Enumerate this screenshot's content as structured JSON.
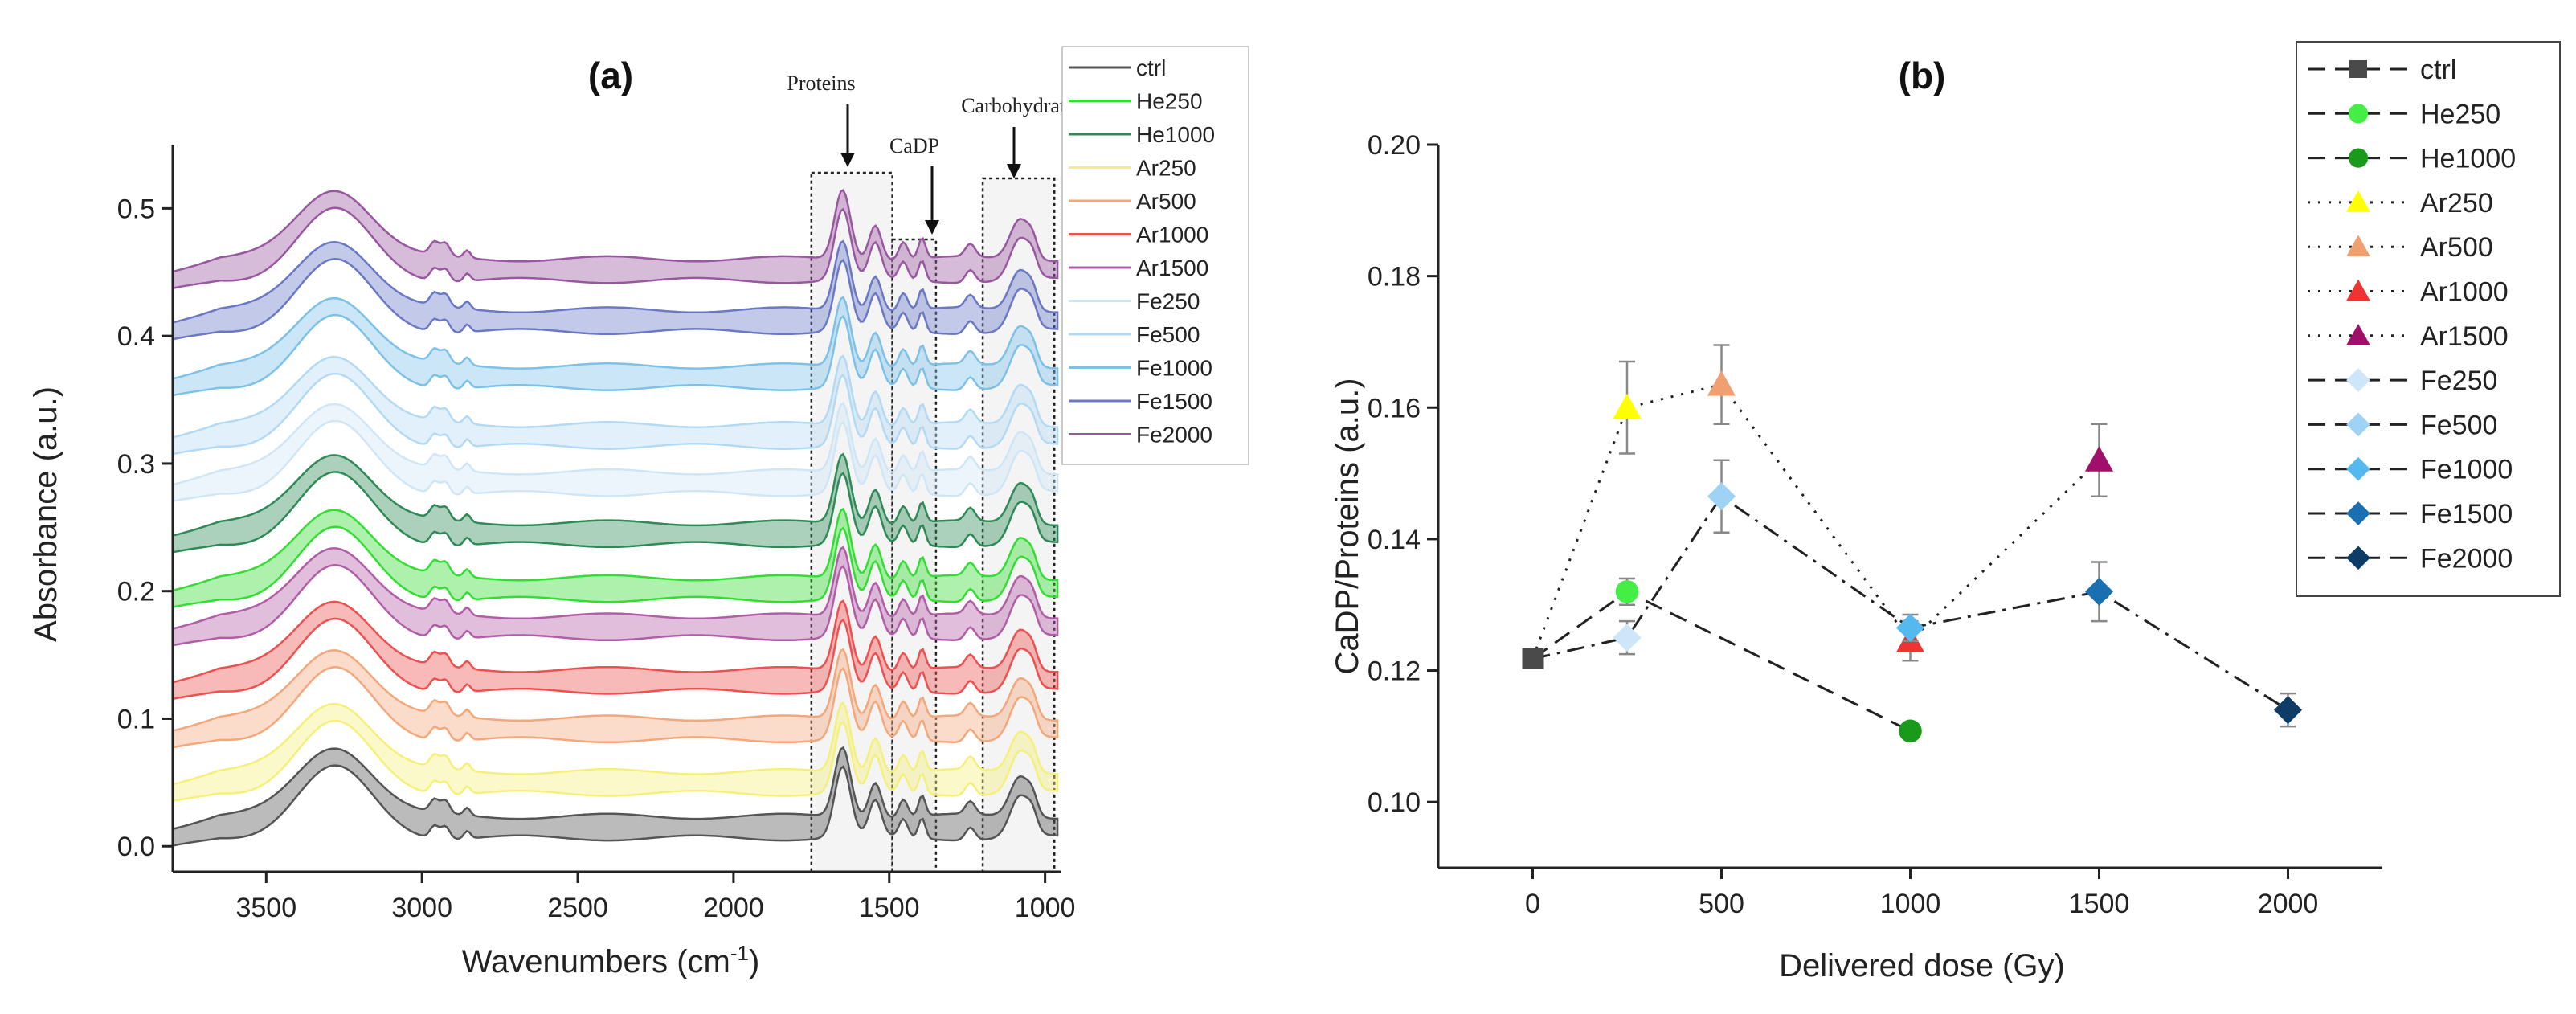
{
  "chart_data": [
    {
      "panel": "(a)",
      "type": "line",
      "title": "(a)",
      "xlabel": "Wavenumbers (cm",
      "xlabel_sup": "-1",
      "xlabel_end": ")",
      "ylabel": "Absorbance (a.u.)",
      "xlim": [
        3800,
        950
      ],
      "ylim": [
        -0.02,
        0.55
      ],
      "xticks": [
        3500,
        3000,
        2500,
        2000,
        1500,
        1000
      ],
      "yticks": [
        0.0,
        0.1,
        0.2,
        0.3,
        0.4,
        0.5
      ],
      "ytick_labels": [
        "0.0",
        "0.1",
        "0.2",
        "0.3",
        "0.4",
        "0.5"
      ],
      "legend_position": "top-right",
      "annotations": [
        {
          "label": "Proteins",
          "region": [
            1750,
            1490
          ]
        },
        {
          "label": "CaDP",
          "region": [
            1490,
            1350
          ]
        },
        {
          "label": "Carbohydrates",
          "region": [
            1200,
            970
          ]
        }
      ],
      "series": [
        {
          "name": "ctrl",
          "color": "#555555",
          "offset": 0.015
        },
        {
          "name": "He250",
          "color": "#33dd33",
          "offset": 0.202
        },
        {
          "name": "He1000",
          "color": "#2e8b57",
          "offset": 0.245
        },
        {
          "name": "Ar250",
          "color": "#f5f07a",
          "offset": 0.05
        },
        {
          "name": "Ar500",
          "color": "#f4a77a",
          "offset": 0.092
        },
        {
          "name": "Ar1000",
          "color": "#ee5050",
          "offset": 0.13
        },
        {
          "name": "Ar1500",
          "color": "#b25da8",
          "offset": 0.172
        },
        {
          "name": "Fe250",
          "color": "#cfe6f7",
          "offset": 0.285
        },
        {
          "name": "Fe500",
          "color": "#b3daf5",
          "offset": 0.322
        },
        {
          "name": "Fe1000",
          "color": "#7cc1e8",
          "offset": 0.368
        },
        {
          "name": "Fe1500",
          "color": "#6a78c5",
          "offset": 0.412
        },
        {
          "name": "Fe2000",
          "color": "#9a57a1",
          "offset": 0.452
        }
      ]
    },
    {
      "panel": "(b)",
      "type": "scatter",
      "title": "(b)",
      "xlabel": "Delivered dose (Gy)",
      "ylabel": "CaDP/Proteins (a.u.)",
      "xlim": [
        -250,
        2250
      ],
      "ylim": [
        0.09,
        0.2
      ],
      "xticks": [
        0,
        500,
        1000,
        1500,
        2000
      ],
      "yticks": [
        0.1,
        0.12,
        0.14,
        0.16,
        0.18,
        0.2
      ],
      "ytick_labels": [
        "0.10",
        "0.12",
        "0.14",
        "0.16",
        "0.18",
        "0.20"
      ],
      "legend_position": "right",
      "lines": [
        {
          "group": "He",
          "style": "dashed",
          "points": [
            [
              0,
              0.1218
            ],
            [
              250,
              0.132
            ],
            [
              1000,
              0.1108
            ]
          ]
        },
        {
          "group": "Ar",
          "style": "dotted",
          "points": [
            [
              0,
              0.1218
            ],
            [
              250,
              0.16
            ],
            [
              500,
              0.1635
            ],
            [
              1000,
              0.1245
            ],
            [
              1500,
              0.152
            ]
          ]
        },
        {
          "group": "Fe",
          "style": "dashdot",
          "points": [
            [
              0,
              0.1218
            ],
            [
              250,
              0.125
            ],
            [
              500,
              0.1465
            ],
            [
              1000,
              0.1265
            ],
            [
              1500,
              0.132
            ],
            [
              2000,
              0.114
            ]
          ]
        }
      ],
      "series": [
        {
          "name": "ctrl",
          "marker": "square",
          "color": "#4a4a4a",
          "legend_line": "dashed",
          "points": [
            {
              "x": 0,
              "y": 0.1218,
              "err": 0.001
            }
          ]
        },
        {
          "name": "He250",
          "marker": "circle",
          "color": "#44ee44",
          "legend_line": "dashed",
          "points": [
            {
              "x": 250,
              "y": 0.132,
              "err": 0.002
            }
          ]
        },
        {
          "name": "He1000",
          "marker": "circle",
          "color": "#1a9a1a",
          "legend_line": "dashed",
          "points": [
            {
              "x": 1000,
              "y": 0.1108,
              "err": 0.0
            }
          ]
        },
        {
          "name": "Ar250",
          "marker": "triangle",
          "color": "#ffff00",
          "legend_line": "dotted",
          "points": [
            {
              "x": 250,
              "y": 0.16,
              "err": 0.007
            }
          ]
        },
        {
          "name": "Ar500",
          "marker": "triangle",
          "color": "#f0a070",
          "legend_line": "dotted",
          "points": [
            {
              "x": 500,
              "y": 0.1635,
              "err": 0.006
            }
          ]
        },
        {
          "name": "Ar1000",
          "marker": "triangle",
          "color": "#ee3333",
          "legend_line": "dotted",
          "points": [
            {
              "x": 1000,
              "y": 0.1245,
              "err": 0.003
            }
          ]
        },
        {
          "name": "Ar1500",
          "marker": "triangle",
          "color": "#a0106a",
          "legend_line": "dotted",
          "points": [
            {
              "x": 1500,
              "y": 0.152,
              "err": 0.0055
            }
          ]
        },
        {
          "name": "Fe250",
          "marker": "diamond",
          "color": "#cde6fa",
          "legend_line": "dashed",
          "points": [
            {
              "x": 250,
              "y": 0.125,
              "err": 0.0025
            }
          ]
        },
        {
          "name": "Fe500",
          "marker": "diamond",
          "color": "#9fd3f5",
          "legend_line": "dashed",
          "points": [
            {
              "x": 500,
              "y": 0.1465,
              "err": 0.0055
            }
          ]
        },
        {
          "name": "Fe1000",
          "marker": "diamond",
          "color": "#55b8ee",
          "legend_line": "dashed",
          "points": [
            {
              "x": 1000,
              "y": 0.1265,
              "err": 0.002
            }
          ]
        },
        {
          "name": "Fe1500",
          "marker": "diamond",
          "color": "#1a6fb0",
          "legend_line": "dashed",
          "points": [
            {
              "x": 1500,
              "y": 0.132,
              "err": 0.0045
            }
          ]
        },
        {
          "name": "Fe2000",
          "marker": "diamond",
          "color": "#0d3d66",
          "legend_line": "dashed",
          "points": [
            {
              "x": 2000,
              "y": 0.114,
              "err": 0.0025
            }
          ]
        }
      ]
    }
  ]
}
